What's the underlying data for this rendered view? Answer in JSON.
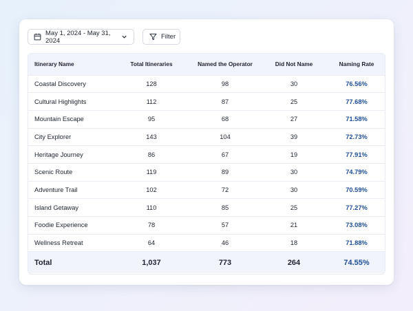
{
  "toolbar": {
    "date_range": "May 1, 2024 - May 31, 2024",
    "filter_label": "Filter",
    "date_icon": "calendar-icon",
    "filter_icon": "filter-icon",
    "dropdown_icon": "chevron-down-icon"
  },
  "table": {
    "headers": [
      "Itinerary Name",
      "Total Itineraries",
      "Named the Operator",
      "Did Not Name",
      "Naming Rate"
    ],
    "rows": [
      {
        "name": "Coastal Discovery",
        "total": "128",
        "named": "98",
        "not_named": "30",
        "rate": "76.56%"
      },
      {
        "name": "Cultural Highlights",
        "total": "112",
        "named": "87",
        "not_named": "25",
        "rate": "77.68%"
      },
      {
        "name": "Mountain Escape",
        "total": "95",
        "named": "68",
        "not_named": "27",
        "rate": "71.58%"
      },
      {
        "name": "City Explorer",
        "total": "143",
        "named": "104",
        "not_named": "39",
        "rate": "72.73%"
      },
      {
        "name": "Heritage Journey",
        "total": "86",
        "named": "67",
        "not_named": "19",
        "rate": "77.91%"
      },
      {
        "name": "Scenic Route",
        "total": "119",
        "named": "89",
        "not_named": "30",
        "rate": "74.79%"
      },
      {
        "name": "Adventure Trail",
        "total": "102",
        "named": "72",
        "not_named": "30",
        "rate": "70.59%"
      },
      {
        "name": "Island Getaway",
        "total": "110",
        "named": "85",
        "not_named": "25",
        "rate": "77.27%"
      },
      {
        "name": "Foodie Experience",
        "total": "78",
        "named": "57",
        "not_named": "21",
        "rate": "73.08%"
      },
      {
        "name": "Wellness Retreat",
        "total": "64",
        "named": "46",
        "not_named": "18",
        "rate": "71.88%"
      }
    ],
    "footer": {
      "name": "Total",
      "total": "1,037",
      "named": "773",
      "not_named": "264",
      "rate": "74.55%"
    }
  },
  "colors": {
    "accent": "#1f4e97",
    "header_bg": "#f1f4fd"
  }
}
